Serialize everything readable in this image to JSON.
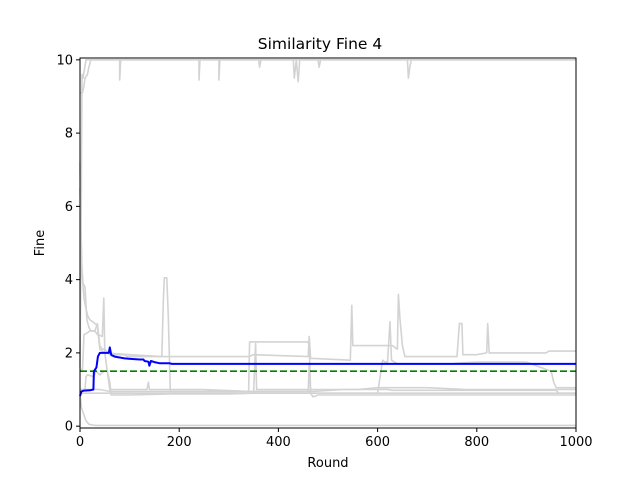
{
  "chart_data": {
    "type": "line",
    "title": "Similarity Fine 4",
    "xlabel": "Round",
    "ylabel": "Fine",
    "xlim": [
      0,
      1000
    ],
    "ylim": [
      -0.05,
      10.05
    ],
    "xticks": [
      0,
      200,
      400,
      600,
      800,
      1000
    ],
    "xtick_labels": [
      "0",
      "200",
      "400",
      "600",
      "800",
      "1000"
    ],
    "yticks": [
      0,
      2,
      4,
      6,
      8,
      10
    ],
    "ytick_labels": [
      "0",
      "2",
      "4",
      "6",
      "8",
      "10"
    ],
    "grid": false,
    "legend": false,
    "series": [
      {
        "color": "#0000ff",
        "style": "solid",
        "highlight": true,
        "points": [
          [
            0,
            0.82
          ],
          [
            3,
            0.95
          ],
          [
            8,
            0.97
          ],
          [
            20,
            0.98
          ],
          [
            27,
            1.0
          ],
          [
            28,
            1.5
          ],
          [
            33,
            1.6
          ],
          [
            36,
            1.9
          ],
          [
            40,
            2.0
          ],
          [
            58,
            2.0
          ],
          [
            60,
            2.15
          ],
          [
            63,
            1.95
          ],
          [
            70,
            1.9
          ],
          [
            90,
            1.85
          ],
          [
            120,
            1.82
          ],
          [
            128,
            1.82
          ],
          [
            130,
            1.78
          ],
          [
            138,
            1.76
          ],
          [
            140,
            1.65
          ],
          [
            143,
            1.78
          ],
          [
            150,
            1.75
          ],
          [
            160,
            1.72
          ],
          [
            180,
            1.72
          ],
          [
            185,
            1.7
          ],
          [
            1000,
            1.7
          ]
        ]
      },
      {
        "color": "#008000",
        "style": "dashed",
        "highlight": false,
        "points": [
          [
            0,
            1.5
          ],
          [
            1000,
            1.5
          ]
        ]
      },
      {
        "color": "#d3d3d3",
        "style": "solid",
        "highlight": false,
        "points": [
          [
            0,
            9.1
          ],
          [
            5,
            9.1
          ],
          [
            8,
            9.3
          ],
          [
            10,
            9.5
          ],
          [
            15,
            9.6
          ],
          [
            18,
            9.8
          ],
          [
            22,
            10.0
          ],
          [
            80,
            10.0
          ],
          [
            80,
            9.45
          ],
          [
            82,
            10.0
          ],
          [
            240,
            10.0
          ],
          [
            240,
            9.45
          ],
          [
            242,
            10.0
          ],
          [
            280,
            10.0
          ],
          [
            280,
            9.45
          ],
          [
            282,
            10.0
          ],
          [
            360,
            10.0
          ],
          [
            362,
            9.8
          ],
          [
            365,
            10.0
          ],
          [
            430,
            10.0
          ],
          [
            432,
            9.5
          ],
          [
            436,
            10.0
          ],
          [
            440,
            9.4
          ],
          [
            443,
            10.0
          ],
          [
            480,
            10.0
          ],
          [
            482,
            9.8
          ],
          [
            485,
            10.0
          ],
          [
            660,
            10.0
          ],
          [
            662,
            9.5
          ],
          [
            665,
            9.8
          ],
          [
            668,
            10.0
          ],
          [
            1000,
            10.0
          ]
        ]
      },
      {
        "color": "#d3d3d3",
        "style": "solid",
        "highlight": false,
        "points": [
          [
            0,
            1.6
          ],
          [
            2,
            5.0
          ],
          [
            4,
            9.6
          ],
          [
            6,
            9.5
          ],
          [
            12,
            10.0
          ],
          [
            1000,
            10.0
          ]
        ]
      },
      {
        "color": "#d3d3d3",
        "style": "solid",
        "highlight": false,
        "points": [
          [
            0,
            7.2
          ],
          [
            3,
            4.5
          ],
          [
            6,
            3.9
          ],
          [
            10,
            3.8
          ],
          [
            14,
            2.9
          ],
          [
            18,
            2.7
          ],
          [
            22,
            2.6
          ],
          [
            30,
            2.6
          ],
          [
            35,
            2.5
          ],
          [
            45,
            2.45
          ],
          [
            48,
            3.5
          ],
          [
            50,
            2.0
          ],
          [
            60,
            1.0
          ],
          [
            100,
            1.0
          ],
          [
            135,
            1.0
          ],
          [
            138,
            1.2
          ],
          [
            140,
            1.0
          ],
          [
            200,
            1.0
          ],
          [
            250,
            1.0
          ],
          [
            340,
            0.95
          ],
          [
            400,
            0.95
          ],
          [
            460,
            0.95
          ],
          [
            462,
            1.7
          ],
          [
            465,
            0.9
          ],
          [
            600,
            0.9
          ],
          [
            1000,
            0.9
          ]
        ]
      },
      {
        "color": "#d3d3d3",
        "style": "solid",
        "highlight": false,
        "points": [
          [
            0,
            6.5
          ],
          [
            4,
            4.2
          ],
          [
            8,
            3.5
          ],
          [
            12,
            3.2
          ],
          [
            16,
            3.0
          ],
          [
            20,
            2.9
          ],
          [
            26,
            2.85
          ],
          [
            30,
            2.8
          ],
          [
            35,
            2.75
          ],
          [
            40,
            2.1
          ],
          [
            50,
            2.0
          ],
          [
            100,
            1.95
          ],
          [
            165,
            1.9
          ],
          [
            168,
            3.4
          ],
          [
            170,
            4.05
          ],
          [
            175,
            4.05
          ],
          [
            178,
            3.0
          ],
          [
            182,
            0.95
          ],
          [
            190,
            0.95
          ],
          [
            340,
            0.95
          ],
          [
            342,
            2.3
          ],
          [
            350,
            2.3
          ],
          [
            460,
            2.3
          ],
          [
            462,
            2.15
          ],
          [
            465,
            1.0
          ],
          [
            600,
            1.0
          ],
          [
            620,
            1.0
          ],
          [
            630,
            0.98
          ],
          [
            960,
            0.98
          ],
          [
            965,
            0.9
          ],
          [
            1000,
            0.9
          ]
        ]
      },
      {
        "color": "#d3d3d3",
        "style": "solid",
        "highlight": false,
        "points": [
          [
            0,
            0.9
          ],
          [
            3,
            0.5
          ],
          [
            8,
            0.3
          ],
          [
            12,
            0.15
          ],
          [
            18,
            0.05
          ],
          [
            30,
            0.02
          ],
          [
            1000,
            0.02
          ]
        ]
      },
      {
        "color": "#d3d3d3",
        "style": "solid",
        "highlight": false,
        "points": [
          [
            0,
            1.0
          ],
          [
            10,
            1.0
          ],
          [
            12,
            1.35
          ],
          [
            15,
            1.4
          ],
          [
            28,
            1.35
          ],
          [
            32,
            1.5
          ],
          [
            40,
            1.4
          ],
          [
            48,
            1.5
          ],
          [
            55,
            1.5
          ],
          [
            60,
            1.2
          ],
          [
            63,
            0.85
          ],
          [
            80,
            0.85
          ],
          [
            100,
            0.85
          ],
          [
            180,
            0.88
          ],
          [
            300,
            0.88
          ],
          [
            350,
            0.9
          ],
          [
            354,
            2.25
          ],
          [
            356,
            1.0
          ],
          [
            360,
            1.0
          ],
          [
            460,
            1.0
          ],
          [
            470,
            0.8
          ],
          [
            480,
            0.85
          ],
          [
            600,
            0.85
          ],
          [
            1000,
            0.85
          ]
        ]
      },
      {
        "color": "#d3d3d3",
        "style": "solid",
        "highlight": false,
        "points": [
          [
            0,
            1.55
          ],
          [
            5,
            1.55
          ],
          [
            8,
            2.5
          ],
          [
            15,
            2.55
          ],
          [
            20,
            2.6
          ],
          [
            30,
            2.6
          ],
          [
            35,
            2.8
          ],
          [
            40,
            2.2
          ],
          [
            45,
            2.1
          ],
          [
            50,
            2.1
          ],
          [
            60,
            1.95
          ],
          [
            65,
            1.9
          ],
          [
            70,
            1.95
          ],
          [
            90,
            1.95
          ],
          [
            95,
            1.9
          ],
          [
            130,
            1.9
          ],
          [
            200,
            1.9
          ],
          [
            250,
            1.9
          ],
          [
            300,
            1.9
          ],
          [
            340,
            1.9
          ],
          [
            350,
            1.95
          ],
          [
            460,
            1.9
          ],
          [
            462,
            2.45
          ],
          [
            465,
            1.85
          ],
          [
            470,
            1.85
          ],
          [
            545,
            1.8
          ],
          [
            548,
            3.3
          ],
          [
            550,
            2.2
          ],
          [
            600,
            2.2
          ],
          [
            630,
            2.2
          ],
          [
            640,
            2.1
          ],
          [
            642,
            3.6
          ],
          [
            645,
            2.95
          ],
          [
            650,
            2.2
          ],
          [
            655,
            1.9
          ],
          [
            700,
            1.9
          ],
          [
            760,
            1.9
          ],
          [
            765,
            2.8
          ],
          [
            770,
            2.8
          ],
          [
            772,
            1.95
          ],
          [
            800,
            1.95
          ],
          [
            820,
            2.0
          ],
          [
            822,
            2.8
          ],
          [
            825,
            2.0
          ],
          [
            940,
            2.0
          ],
          [
            945,
            2.05
          ],
          [
            1000,
            2.05
          ]
        ]
      },
      {
        "color": "#d3d3d3",
        "style": "solid",
        "highlight": false,
        "points": [
          [
            0,
            0.9
          ],
          [
            20,
            0.9
          ],
          [
            30,
            0.9
          ],
          [
            60,
            0.9
          ],
          [
            100,
            0.9
          ],
          [
            140,
            0.9
          ],
          [
            200,
            0.9
          ],
          [
            300,
            0.9
          ],
          [
            450,
            0.9
          ],
          [
            500,
            0.9
          ],
          [
            600,
            0.9
          ],
          [
            610,
            1.8
          ],
          [
            615,
            1.75
          ],
          [
            620,
            1.75
          ],
          [
            625,
            2.85
          ],
          [
            628,
            1.8
          ],
          [
            640,
            1.7
          ],
          [
            700,
            1.7
          ],
          [
            750,
            1.7
          ],
          [
            760,
            1.72
          ],
          [
            800,
            1.75
          ],
          [
            900,
            1.75
          ],
          [
            950,
            1.5
          ],
          [
            955,
            1.2
          ],
          [
            960,
            1.05
          ],
          [
            1000,
            1.05
          ]
        ]
      },
      {
        "color": "#d3d3d3",
        "style": "solid",
        "highlight": false,
        "points": [
          [
            0,
            1.0
          ],
          [
            40,
            1.0
          ],
          [
            60,
            0.95
          ],
          [
            140,
            0.95
          ],
          [
            160,
            0.95
          ],
          [
            300,
            0.95
          ],
          [
            440,
            0.95
          ],
          [
            470,
            0.95
          ],
          [
            530,
            1.0
          ],
          [
            560,
            1.0
          ],
          [
            600,
            1.05
          ],
          [
            700,
            1.05
          ],
          [
            780,
            1.0
          ],
          [
            1000,
            1.0
          ]
        ]
      }
    ]
  }
}
